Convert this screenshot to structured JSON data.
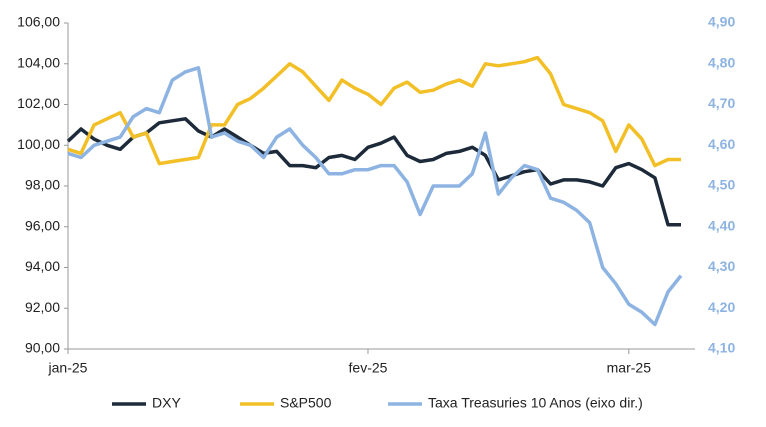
{
  "chart_data": {
    "type": "line",
    "categories": [
      "jan-25",
      null,
      null,
      null,
      null,
      null,
      null,
      null,
      null,
      null,
      null,
      null,
      null,
      null,
      null,
      null,
      null,
      null,
      null,
      null,
      null,
      null,
      null,
      "fev-25",
      null,
      null,
      null,
      null,
      null,
      null,
      null,
      null,
      null,
      null,
      null,
      null,
      null,
      null,
      null,
      null,
      null,
      null,
      null,
      "mar-25",
      null,
      null,
      null,
      null
    ],
    "series": [
      {
        "name": "DXY",
        "color": "#1c2a3a",
        "axis": "y",
        "values": [
          100.2,
          100.8,
          100.3,
          100.0,
          99.8,
          100.4,
          100.6,
          101.1,
          101.2,
          101.3,
          100.7,
          100.4,
          100.8,
          100.4,
          100.0,
          99.6,
          99.7,
          99.0,
          99.0,
          98.9,
          99.4,
          99.5,
          99.3,
          99.9,
          100.1,
          100.4,
          99.5,
          99.2,
          99.3,
          99.6,
          99.7,
          99.9,
          99.5,
          98.3,
          98.5,
          98.7,
          98.8,
          98.1,
          98.3,
          98.3,
          98.2,
          98.0,
          98.9,
          99.1,
          98.8,
          98.4,
          96.1,
          96.1
        ]
      },
      {
        "name": "S&P500",
        "color": "#f2bf26",
        "axis": "y",
        "values": [
          99.8,
          99.6,
          101.0,
          101.3,
          101.6,
          100.4,
          100.6,
          99.1,
          99.2,
          99.3,
          99.4,
          101.0,
          101.0,
          102.0,
          102.3,
          102.8,
          103.4,
          104.0,
          103.6,
          102.9,
          102.2,
          103.2,
          102.8,
          102.5,
          102.0,
          102.8,
          103.1,
          102.6,
          102.7,
          103.0,
          103.2,
          102.9,
          104.0,
          103.9,
          104.0,
          104.1,
          104.3,
          103.5,
          102.0,
          101.8,
          101.6,
          101.2,
          99.7,
          101.0,
          100.3,
          99.0,
          99.3,
          99.3
        ]
      },
      {
        "name": "Taxa Treasuries 10 Anos (eixo dir.)",
        "color": "#8db3e2",
        "axis": "y2",
        "values": [
          4.58,
          4.57,
          4.6,
          4.61,
          4.62,
          4.67,
          4.69,
          4.68,
          4.76,
          4.78,
          4.79,
          4.62,
          4.63,
          4.61,
          4.6,
          4.57,
          4.62,
          4.64,
          4.6,
          4.57,
          4.53,
          4.53,
          4.54,
          4.54,
          4.55,
          4.55,
          4.51,
          4.43,
          4.5,
          4.5,
          4.5,
          4.53,
          4.63,
          4.48,
          4.52,
          4.55,
          4.54,
          4.47,
          4.46,
          4.44,
          4.41,
          4.3,
          4.26,
          4.21,
          4.19,
          4.16,
          4.24,
          4.28
        ]
      }
    ],
    "ylim": [
      90,
      106
    ],
    "yticks": [
      {
        "value": 90,
        "label": "90,00"
      },
      {
        "value": 92,
        "label": "92,00"
      },
      {
        "value": 94,
        "label": "94,00"
      },
      {
        "value": 96,
        "label": "96,00"
      },
      {
        "value": 98,
        "label": "98,00"
      },
      {
        "value": 100,
        "label": "100,00"
      },
      {
        "value": 102,
        "label": "102,00"
      },
      {
        "value": 104,
        "label": "104,00"
      },
      {
        "value": 106,
        "label": "106,00"
      }
    ],
    "y2lim": [
      4.1,
      4.9
    ],
    "y2ticks": [
      {
        "value": 4.1,
        "label": "4,10"
      },
      {
        "value": 4.2,
        "label": "4,20"
      },
      {
        "value": 4.3,
        "label": "4,30"
      },
      {
        "value": 4.4,
        "label": "4,40"
      },
      {
        "value": 4.5,
        "label": "4,50"
      },
      {
        "value": 4.6,
        "label": "4,60"
      },
      {
        "value": 4.7,
        "label": "4,70"
      },
      {
        "value": 4.8,
        "label": "4,80"
      },
      {
        "value": 4.9,
        "label": "4,90"
      }
    ],
    "y2color": "#8db3e2",
    "grid": false,
    "legend": "bottom"
  }
}
